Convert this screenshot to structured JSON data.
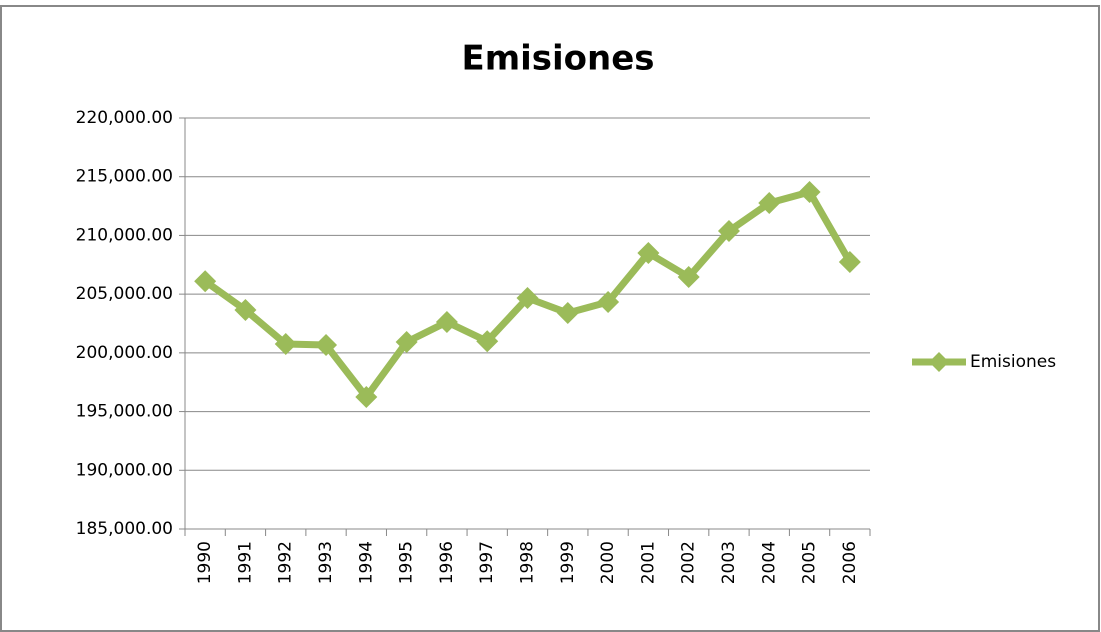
{
  "chart_data": {
    "type": "line",
    "title": "Emisiones",
    "categories": [
      "1990",
      "1991",
      "1992",
      "1993",
      "1994",
      "1995",
      "1996",
      "1997",
      "1998",
      "1999",
      "2000",
      "2001",
      "2002",
      "2003",
      "2004",
      "2005",
      "2006"
    ],
    "series": [
      {
        "name": "Emisiones",
        "color": "#9bbb59",
        "values": [
          206100,
          203650,
          200750,
          200670,
          196240,
          200920,
          202630,
          200990,
          204670,
          203390,
          204330,
          208500,
          206460,
          210380,
          212760,
          213700,
          207740
        ]
      }
    ],
    "ylim": [
      185000,
      220000
    ],
    "yticks": [
      {
        "value": 185000,
        "label": "185,000.00"
      },
      {
        "value": 190000,
        "label": "190,000.00"
      },
      {
        "value": 195000,
        "label": "195,000.00"
      },
      {
        "value": 200000,
        "label": "200,000.00"
      },
      {
        "value": 205000,
        "label": "205,000.00"
      },
      {
        "value": 210000,
        "label": "210,000.00"
      },
      {
        "value": 215000,
        "label": "215,000.00"
      },
      {
        "value": 220000,
        "label": "220,000.00"
      }
    ],
    "grid": true,
    "legend": "right"
  }
}
